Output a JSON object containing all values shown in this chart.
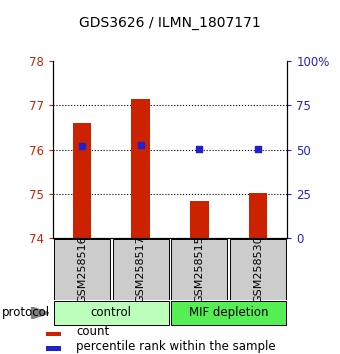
{
  "title": "GDS3626 / ILMN_1807171",
  "samples": [
    "GSM258516",
    "GSM258517",
    "GSM258515",
    "GSM258530"
  ],
  "bar_values": [
    76.6,
    77.15,
    74.85,
    75.02
  ],
  "percentile_values": [
    76.08,
    76.1,
    76.02,
    76.02
  ],
  "ylim": [
    74,
    78
  ],
  "yticks_left": [
    74,
    75,
    76,
    77,
    78
  ],
  "yticks_right": [
    0,
    25,
    50,
    75,
    100
  ],
  "bar_color": "#cc2200",
  "percentile_color": "#2222cc",
  "bar_bottom": 74,
  "control_color": "#bbffbb",
  "mif_color": "#55ee55",
  "sample_box_color": "#cccccc",
  "legend_bar_label": "count",
  "legend_pct_label": "percentile rank within the sample"
}
